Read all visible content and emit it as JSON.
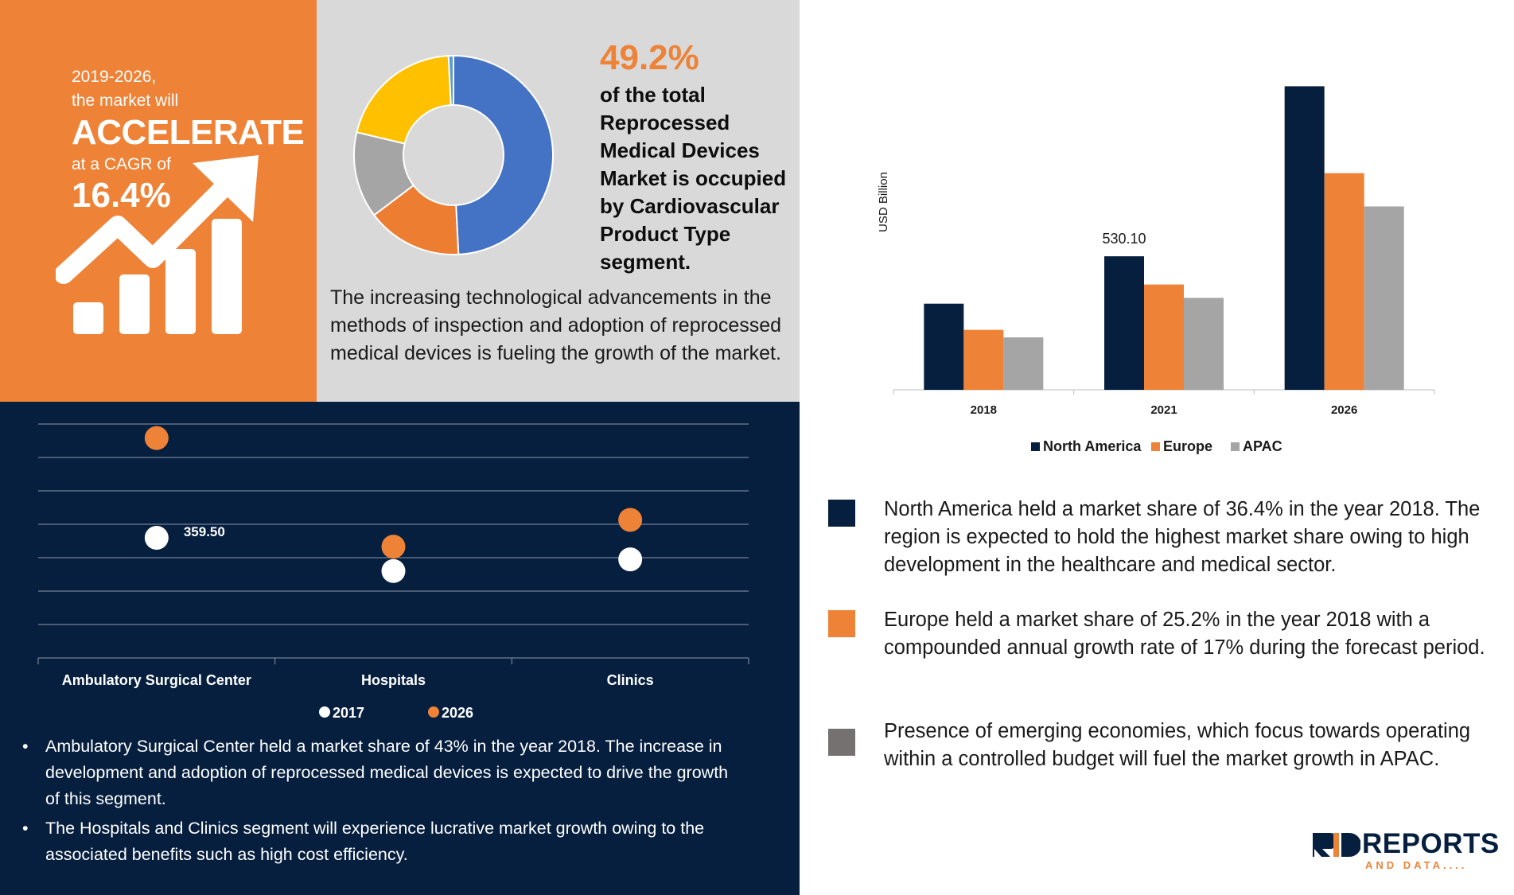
{
  "headline": {
    "line1": "2019-2026,",
    "line2": "the market will",
    "line3": "ACCELERATE",
    "line4": "at a CAGR of",
    "line5": "16.4%"
  },
  "donut_section": {
    "percent": "49.2%",
    "description": "of the total Reprocessed Medical Devices Market is occupied by Cardiovascular Product Type segment.",
    "paragraph": "The increasing technological advancements in the methods of inspection and adoption of reprocessed medical devices is fueling the growth of the market."
  },
  "bullets": [
    "Ambulatory Surgical Center held a market share of 43% in the year 2018. The increase in development and adoption of reprocessed medical devices is expected to drive the growth of this segment.",
    "The Hospitals and Clinics segment will experience lucrative market growth owing to the associated benefits such as high cost efficiency."
  ],
  "region_notes": [
    {
      "text": "North America held a market share of 36.4% in the year 2018. The region is expected to hold the highest market share owing to high development in the healthcare and medical sector.",
      "color": "#061f3f"
    },
    {
      "text": "Europe held a market share of 25.2% in the year 2018 with a compounded annual growth rate of 17% during the forecast period.",
      "color": "#ee8236"
    },
    {
      "text": "Presence of emerging economies, which focus towards operating within a controlled budget will fuel the market growth in APAC.",
      "color": "#767171"
    }
  ],
  "logo": {
    "main": "REPORTS",
    "sub": "AND DATA...."
  },
  "chart_data": [
    {
      "type": "pie",
      "donut": true,
      "slices": [
        {
          "value": 49.2,
          "color": "#4472c4"
        },
        {
          "value": 15.5,
          "color": "#ed7d31"
        },
        {
          "value": 14.0,
          "color": "#a5a5a5"
        },
        {
          "value": 20.5,
          "color": "#ffc000"
        },
        {
          "value": 0.8,
          "color": "#5b9bd5"
        }
      ]
    },
    {
      "type": "scatter",
      "categories": [
        "Ambulatory Surgical Center",
        "Hospitals",
        "Clinics"
      ],
      "ylim": [
        0,
        700
      ],
      "grid": true,
      "series": [
        {
          "name": "2017",
          "color": "#ffffff",
          "values": [
            359.5,
            260,
            295
          ]
        },
        {
          "name": "2026",
          "color": "#ee8236",
          "values": [
            658,
            333,
            413
          ]
        }
      ],
      "data_labels": [
        {
          "series": 0,
          "index": 0,
          "text": "359.50"
        }
      ],
      "legend": "bottom"
    },
    {
      "type": "bar",
      "ylabel": "USD Billion",
      "categories": [
        "2018",
        "2021",
        "2026"
      ],
      "ylim": [
        0,
        1200
      ],
      "series": [
        {
          "name": "North America",
          "color": "#061f3f",
          "values": [
            342,
            530.1,
            1205
          ]
        },
        {
          "name": "Europe",
          "color": "#ee8236",
          "values": [
            238,
            418,
            860
          ]
        },
        {
          "name": "APAC",
          "color": "#a5a5a5",
          "values": [
            208,
            365,
            728
          ]
        }
      ],
      "data_labels": [
        {
          "series": 0,
          "index": 1,
          "text": "530.10"
        }
      ],
      "legend": "bottom"
    }
  ]
}
